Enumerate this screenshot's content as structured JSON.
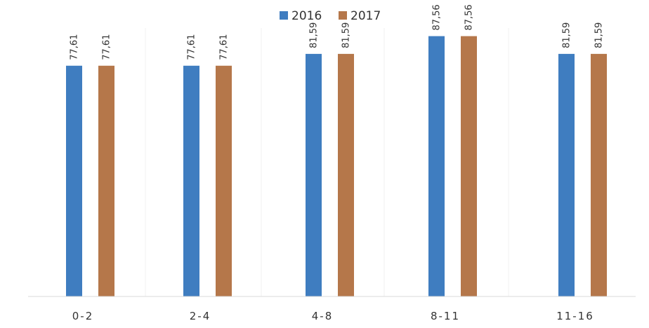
{
  "chart_data": {
    "type": "bar",
    "categories": [
      "0-2",
      "2-4",
      "4-8",
      "8-11",
      "11-16"
    ],
    "series": [
      {
        "name": "2016",
        "values": [
          77.61,
          77.61,
          81.59,
          87.56,
          81.59
        ],
        "value_labels": [
          "77,61",
          "77,61",
          "81,59",
          "87,56",
          "81,59"
        ],
        "color": "#3f7dc0"
      },
      {
        "name": "2017",
        "values": [
          77.61,
          77.61,
          81.59,
          87.56,
          81.59
        ],
        "value_labels": [
          "77,61",
          "77,61",
          "81,59",
          "87,56",
          "81,59"
        ],
        "color": "#b5774a"
      }
    ],
    "title": "",
    "xlabel": "",
    "ylabel": "",
    "ylim": [
      0,
      95
    ],
    "legend": "top-center",
    "grid": false
  }
}
